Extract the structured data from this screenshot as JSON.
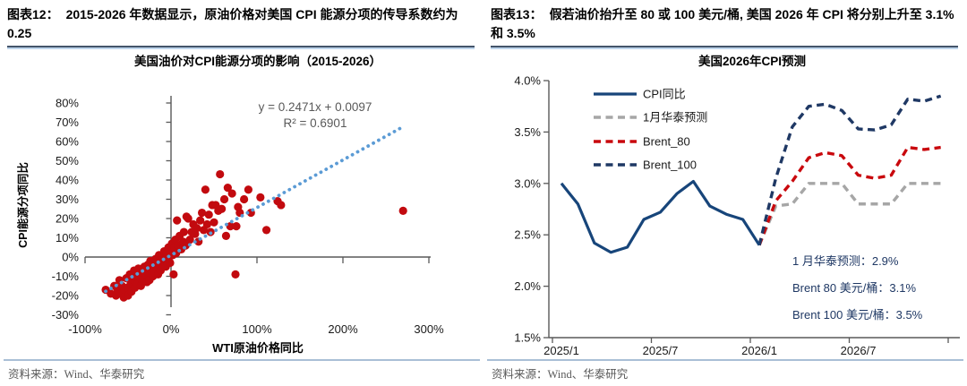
{
  "colors": {
    "rule_dark": "#44546A",
    "rule_light": "#BFD5EC",
    "source_rule": "#A9BFD6",
    "axis": "#595959",
    "tick_text": "#1a1a1a",
    "equation_text": "#595959",
    "annotation_text": "#1F3864"
  },
  "left_panel": {
    "figure_label": "图表12：",
    "figure_title": "2015-2026 年数据显示，原油价格对美国 CPI 能源分项的传导系数约为 0.25",
    "source": "资料来源：Wind、华泰研究",
    "chart_data": {
      "type": "scatter",
      "title": "美国油价对CPI能源分项的影响（2015-2026）",
      "xlabel": "WTI原油价格同比",
      "ylabel": "CPI能源分项同比",
      "xlim": [
        -100,
        300
      ],
      "ylim": [
        -30,
        80
      ],
      "x_ticks": [
        "-100%",
        "0%",
        "100%",
        "200%",
        "300%"
      ],
      "y_ticks": [
        "80%",
        "70%",
        "60%",
        "50%",
        "40%",
        "30%",
        "20%",
        "10%",
        "0%",
        "-10%",
        "-20%",
        "-30%"
      ],
      "equation": "y = 0.2471x + 0.0097",
      "r_squared": "R² = 0.6901",
      "trendline": {
        "slope": 0.2471,
        "intercept": 0.0097,
        "x_start": -76,
        "x_end": 268,
        "color": "#5B9BD5"
      },
      "point_color": "#C20A0F",
      "points": [
        [
          -76,
          -17
        ],
        [
          -70,
          -19
        ],
        [
          -66,
          -15
        ],
        [
          -64,
          -20
        ],
        [
          -62,
          -17
        ],
        [
          -60,
          -12
        ],
        [
          -58,
          -19
        ],
        [
          -57,
          -15
        ],
        [
          -55,
          -21
        ],
        [
          -54,
          -17
        ],
        [
          -52,
          -11
        ],
        [
          -51,
          -16
        ],
        [
          -50,
          -20
        ],
        [
          -48,
          -9
        ],
        [
          -47,
          -14
        ],
        [
          -46,
          -18
        ],
        [
          -44,
          -12
        ],
        [
          -43,
          -7
        ],
        [
          -42,
          -16
        ],
        [
          -40,
          -10
        ],
        [
          -39,
          -14
        ],
        [
          -38,
          -6
        ],
        [
          -36,
          -11
        ],
        [
          -35,
          -15
        ],
        [
          -34,
          -8
        ],
        [
          -32,
          -12
        ],
        [
          -31,
          -5
        ],
        [
          -30,
          -9
        ],
        [
          -28,
          -13
        ],
        [
          -27,
          -4
        ],
        [
          -26,
          -8
        ],
        [
          -25,
          -12
        ],
        [
          -24,
          -2
        ],
        [
          -22,
          -6
        ],
        [
          -21,
          -10
        ],
        [
          -20,
          -4
        ],
        [
          -19,
          -8
        ],
        [
          -18,
          -1
        ],
        [
          -16,
          -5
        ],
        [
          -15,
          -9
        ],
        [
          -14,
          1
        ],
        [
          -13,
          -3
        ],
        [
          -12,
          -7
        ],
        [
          -10,
          0
        ],
        [
          -9,
          -4
        ],
        [
          -8,
          3
        ],
        [
          -7,
          -1
        ],
        [
          -6,
          -5
        ],
        [
          -5,
          2
        ],
        [
          -4,
          -2
        ],
        [
          -3,
          5
        ],
        [
          -2,
          0
        ],
        [
          -1,
          -3
        ],
        [
          0,
          3
        ],
        [
          1,
          7
        ],
        [
          2,
          1
        ],
        [
          3,
          -9
        ],
        [
          4,
          5
        ],
        [
          5,
          9
        ],
        [
          6,
          2
        ],
        [
          7,
          19
        ],
        [
          8,
          6
        ],
        [
          10,
          11
        ],
        [
          12,
          4
        ],
        [
          14,
          8
        ],
        [
          15,
          13
        ],
        [
          17,
          6
        ],
        [
          18,
          21
        ],
        [
          20,
          20
        ],
        [
          22,
          9
        ],
        [
          24,
          13
        ],
        [
          26,
          17
        ],
        [
          28,
          12
        ],
        [
          30,
          15
        ],
        [
          32,
          8
        ],
        [
          34,
          19
        ],
        [
          36,
          23
        ],
        [
          38,
          14
        ],
        [
          40,
          35
        ],
        [
          42,
          17
        ],
        [
          44,
          22
        ],
        [
          46,
          13
        ],
        [
          48,
          27
        ],
        [
          50,
          18
        ],
        [
          52,
          27
        ],
        [
          55,
          24
        ],
        [
          57,
          43
        ],
        [
          59,
          25
        ],
        [
          62,
          30
        ],
        [
          64,
          11
        ],
        [
          66,
          36
        ],
        [
          69,
          16
        ],
        [
          71,
          33
        ],
        [
          75,
          -9
        ],
        [
          76,
          16
        ],
        [
          78,
          26
        ],
        [
          80,
          23
        ],
        [
          85,
          30
        ],
        [
          90,
          35
        ],
        [
          93,
          23
        ],
        [
          104,
          31
        ],
        [
          111,
          14
        ],
        [
          124,
          29
        ],
        [
          128,
          27
        ],
        [
          270,
          24
        ]
      ]
    }
  },
  "right_panel": {
    "figure_label": "图表13：",
    "figure_title": "假若油价抬升至 80 或 100 美元/桶, 美国 2026 年 CPI 将分别上升至 3.1%和 3.5%",
    "source": "资料来源：Wind、华泰研究",
    "chart_data": {
      "type": "line",
      "title": "美国2026年CPI预测",
      "ylim": [
        1.5,
        4.0
      ],
      "y_ticks": [
        "4.0%",
        "3.5%",
        "3.0%",
        "2.5%",
        "2.0%",
        "1.5%"
      ],
      "x_ticks": [
        "2025/1",
        "2025/7",
        "2026/1",
        "2026/7"
      ],
      "x_tick_months": [
        0,
        6,
        12,
        18
      ],
      "months_total": 24,
      "legend_position": "top-left",
      "series": [
        {
          "name": "CPI同比",
          "style": "solid",
          "color": "#17457A",
          "start_month": 0,
          "values": [
            3.0,
            2.8,
            2.42,
            2.33,
            2.38,
            2.65,
            2.72,
            2.9,
            3.02,
            2.78,
            2.7,
            2.65,
            2.4
          ]
        },
        {
          "name": "1月华泰预测",
          "style": "dashed",
          "color": "#A6A6A6",
          "start_month": 12,
          "values": [
            2.4,
            2.78,
            2.8,
            3.0,
            3.0,
            3.0,
            2.8,
            2.8,
            2.8,
            3.0,
            3.0,
            3.0
          ]
        },
        {
          "name": "Brent_80",
          "style": "dashed",
          "color": "#C9080D",
          "start_month": 12,
          "values": [
            2.4,
            2.83,
            3.02,
            3.25,
            3.3,
            3.27,
            3.08,
            3.05,
            3.08,
            3.35,
            3.33,
            3.35
          ]
        },
        {
          "name": "Brent_100",
          "style": "dashed",
          "color": "#1F3864",
          "start_month": 12,
          "values": [
            2.4,
            3.05,
            3.55,
            3.75,
            3.77,
            3.71,
            3.53,
            3.52,
            3.57,
            3.82,
            3.8,
            3.85
          ]
        }
      ],
      "annotations": [
        "1 月华泰预测：2.9%",
        "Brent 80 美元/桶：3.1%",
        "Brent 100 美元/桶：3.5%"
      ]
    }
  }
}
